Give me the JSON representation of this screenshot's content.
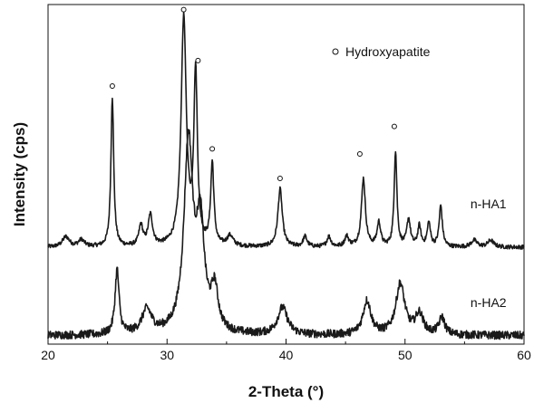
{
  "chart_data": {
    "type": "line",
    "title": "",
    "xlabel": "2-Theta (°)",
    "ylabel": "Intensity (cps)",
    "xlim": [
      20,
      60
    ],
    "ylim": [
      0,
      1
    ],
    "xticks": [
      "20",
      "30",
      "40",
      "50",
      "60"
    ],
    "yticks_shown": false,
    "grid": false,
    "legend": {
      "marker": "circle",
      "text": "Hydroxyapatite",
      "placement": "top-right"
    },
    "line_color": "#1a1a1a",
    "series": [
      {
        "name": "n-HA1",
        "baseline": 0.285,
        "noise": 0.006,
        "peaks": [
          {
            "x": 21.5,
            "h": 0.03,
            "w": 0.35
          },
          {
            "x": 22.8,
            "h": 0.02,
            "w": 0.3
          },
          {
            "x": 25.4,
            "h": 0.44,
            "w": 0.14
          },
          {
            "x": 27.8,
            "h": 0.06,
            "w": 0.2
          },
          {
            "x": 28.6,
            "h": 0.09,
            "w": 0.22
          },
          {
            "x": 31.4,
            "h": 0.67,
            "w": 0.26
          },
          {
            "x": 32.4,
            "h": 0.5,
            "w": 0.18
          },
          {
            "x": 33.8,
            "h": 0.24,
            "w": 0.16
          },
          {
            "x": 35.3,
            "h": 0.03,
            "w": 0.3
          },
          {
            "x": 39.5,
            "h": 0.17,
            "w": 0.22
          },
          {
            "x": 41.6,
            "h": 0.03,
            "w": 0.2
          },
          {
            "x": 43.6,
            "h": 0.03,
            "w": 0.2
          },
          {
            "x": 45.1,
            "h": 0.03,
            "w": 0.2
          },
          {
            "x": 46.5,
            "h": 0.2,
            "w": 0.2
          },
          {
            "x": 47.8,
            "h": 0.07,
            "w": 0.18
          },
          {
            "x": 49.2,
            "h": 0.28,
            "w": 0.14
          },
          {
            "x": 50.3,
            "h": 0.08,
            "w": 0.18
          },
          {
            "x": 51.2,
            "h": 0.06,
            "w": 0.16
          },
          {
            "x": 52.0,
            "h": 0.07,
            "w": 0.16
          },
          {
            "x": 53.0,
            "h": 0.12,
            "w": 0.16
          },
          {
            "x": 55.8,
            "h": 0.02,
            "w": 0.3
          },
          {
            "x": 57.2,
            "h": 0.02,
            "w": 0.3
          }
        ]
      },
      {
        "name": "n-HA2",
        "baseline": 0.025,
        "noise": 0.012,
        "peaks": [
          {
            "x": 25.8,
            "h": 0.19,
            "w": 0.2
          },
          {
            "x": 28.3,
            "h": 0.07,
            "w": 0.5
          },
          {
            "x": 31.8,
            "h": 0.56,
            "w": 0.45
          },
          {
            "x": 32.8,
            "h": 0.3,
            "w": 0.4
          },
          {
            "x": 34.0,
            "h": 0.12,
            "w": 0.35
          },
          {
            "x": 39.7,
            "h": 0.08,
            "w": 0.5
          },
          {
            "x": 46.8,
            "h": 0.1,
            "w": 0.4
          },
          {
            "x": 49.6,
            "h": 0.15,
            "w": 0.45
          },
          {
            "x": 51.2,
            "h": 0.06,
            "w": 0.4
          },
          {
            "x": 53.1,
            "h": 0.05,
            "w": 0.3
          }
        ]
      }
    ],
    "peak_markers": [
      {
        "x": 25.4,
        "y": 0.76
      },
      {
        "x": 31.4,
        "y": 0.985
      },
      {
        "x": 32.6,
        "y": 0.835
      },
      {
        "x": 33.8,
        "y": 0.575
      },
      {
        "x": 39.5,
        "y": 0.488
      },
      {
        "x": 46.2,
        "y": 0.56
      },
      {
        "x": 49.1,
        "y": 0.641
      }
    ],
    "series_labels": [
      {
        "text": "n-HA1",
        "x": 55.5,
        "y": 0.4
      },
      {
        "text": "n-HA2",
        "x": 55.5,
        "y": 0.11
      }
    ]
  }
}
